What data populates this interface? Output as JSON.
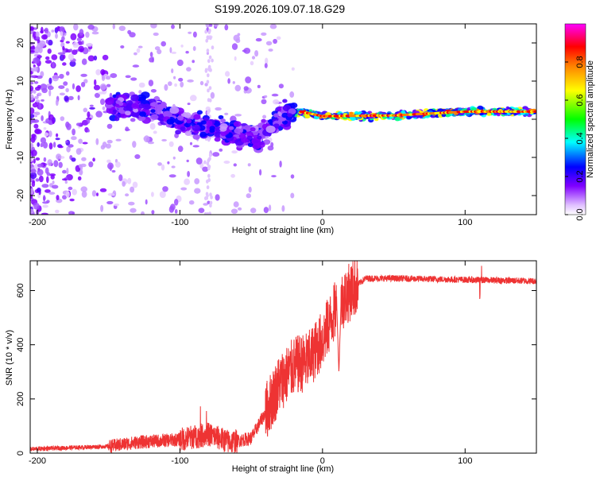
{
  "title": "S199.2026.109.07.18.G29",
  "chart_data": [
    {
      "type": "heatmap",
      "name": "spectrogram",
      "xlabel": "Height of straight line (km)",
      "ylabel": "Frequency (Hz)",
      "xlim": [
        -205,
        150
      ],
      "ylim": [
        -25,
        25
      ],
      "xticks": [
        -200,
        -100,
        0,
        100
      ],
      "xtick_labels": [
        "-200",
        "-100",
        "0",
        "100"
      ],
      "yticks": [
        20,
        10,
        0,
        -10,
        -20
      ],
      "ytick_labels": [
        "20",
        "10",
        "0",
        "-10",
        "-20"
      ],
      "colorbar": {
        "label": "Normalized spectral amplitude",
        "range": [
          0.0,
          1.0
        ],
        "ticks": [
          0.0,
          0.2,
          0.4,
          0.6,
          0.8
        ],
        "tick_labels": [
          "0.0",
          "0.2",
          "0.4",
          "0.6",
          "0.8"
        ],
        "colors": [
          "#ffffff",
          "#c080ff",
          "#8000ff",
          "#0000ff",
          "#00ffff",
          "#00ff00",
          "#ffff00",
          "#ff8000",
          "#ff0000",
          "#ff00ff"
        ]
      },
      "ridge": {
        "x": [
          -150,
          -120,
          -100,
          -80,
          -60,
          -45,
          -35,
          -25,
          -15,
          0,
          50,
          100,
          150
        ],
        "y": [
          4,
          2.5,
          0,
          -2,
          -4,
          -5,
          -1,
          1,
          2,
          0.8,
          1,
          2,
          2
        ]
      }
    },
    {
      "type": "line",
      "name": "snr",
      "xlabel": "Height of straight line (km)",
      "ylabel": "SNR (10 * v/v)",
      "xlim": [
        -205,
        150
      ],
      "ylim": [
        0,
        710
      ],
      "xticks": [
        -200,
        -100,
        0,
        100
      ],
      "xtick_labels": [
        "-200",
        "-100",
        "0",
        "100"
      ],
      "yticks": [
        0,
        200,
        400,
        600
      ],
      "ytick_labels": [
        "0",
        "200",
        "400",
        "600"
      ],
      "color": "#ee3333",
      "trend": {
        "x": [
          -205,
          -150,
          -130,
          -100,
          -80,
          -65,
          -50,
          -40,
          -30,
          -20,
          -10,
          0,
          10,
          20,
          30,
          50,
          100,
          150
        ],
        "y": [
          15,
          25,
          40,
          50,
          70,
          40,
          55,
          150,
          260,
          320,
          340,
          420,
          540,
          600,
          645,
          645,
          640,
          635
        ]
      }
    }
  ]
}
